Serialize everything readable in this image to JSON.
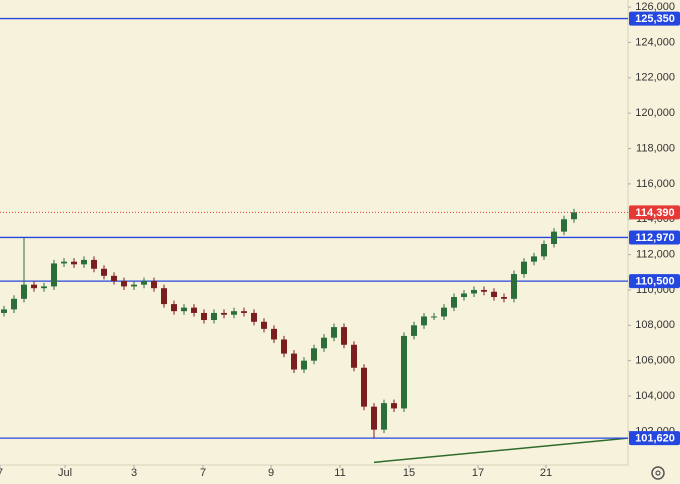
{
  "chart_data": {
    "type": "candlestick",
    "open": [
      108700,
      108900,
      109500,
      110300,
      110100,
      110200,
      111500,
      111600,
      111450,
      111700,
      111200,
      110800,
      110500,
      110200,
      110300,
      110500,
      110100,
      109200,
      108800,
      109000,
      108700,
      108300,
      108700,
      108600,
      108800,
      108700,
      108200,
      107800,
      107200,
      106400,
      105500,
      106000,
      106700,
      107300,
      107900,
      106900,
      105600,
      103400,
      102100,
      103600,
      103300,
      107400,
      108000,
      108500,
      108500,
      109000,
      109600,
      109800,
      110000,
      109900,
      109600,
      109500,
      110900,
      111600,
      111900,
      112600,
      113300,
      114000
    ],
    "high": [
      109100,
      109700,
      112970,
      110500,
      110400,
      111700,
      111800,
      111800,
      111900,
      111900,
      111400,
      111000,
      110700,
      110500,
      110700,
      110700,
      110300,
      109400,
      109200,
      109200,
      108900,
      108900,
      108900,
      109000,
      109000,
      108900,
      108400,
      108000,
      107400,
      106600,
      106200,
      106900,
      107500,
      108100,
      108100,
      107100,
      105800,
      103600,
      103800,
      103800,
      107600,
      108200,
      108700,
      108700,
      109200,
      109800,
      110000,
      110200,
      110200,
      110100,
      109800,
      111100,
      111800,
      112100,
      112800,
      113500,
      114200,
      114590
    ],
    "low": [
      108500,
      108700,
      109300,
      109900,
      109900,
      110000,
      111300,
      111250,
      111250,
      111000,
      110600,
      110300,
      110000,
      110000,
      110100,
      109900,
      109000,
      108600,
      108600,
      108500,
      108100,
      108100,
      108400,
      108400,
      108500,
      108000,
      107600,
      107000,
      106200,
      105300,
      105300,
      105800,
      106500,
      107100,
      106700,
      105400,
      103200,
      101620,
      101900,
      103100,
      103100,
      107200,
      107800,
      108300,
      108300,
      108800,
      109400,
      109600,
      109700,
      109400,
      109300,
      109300,
      110700,
      111400,
      111700,
      112400,
      113100,
      113800
    ],
    "close": [
      108900,
      109500,
      110300,
      110100,
      110200,
      111500,
      111600,
      111450,
      111700,
      111200,
      110800,
      110500,
      110200,
      110300,
      110500,
      110100,
      109200,
      108800,
      109000,
      108700,
      108300,
      108700,
      108600,
      108800,
      108700,
      108200,
      107800,
      107200,
      106400,
      105500,
      106000,
      106700,
      107300,
      107900,
      106900,
      105600,
      103400,
      102100,
      103600,
      103300,
      107400,
      108000,
      108500,
      108500,
      109000,
      109600,
      109800,
      110000,
      109900,
      109600,
      109500,
      110900,
      111600,
      111900,
      112600,
      113300,
      114000,
      114390
    ],
    "up_color": "#2b6e3a",
    "down_color": "#7a1f1f",
    "ylim": [
      100100,
      126400
    ],
    "yticks": [
      {
        "value": 102000,
        "label": "102,000"
      },
      {
        "value": 104000,
        "label": "104,000"
      },
      {
        "value": 106000,
        "label": "106,000"
      },
      {
        "value": 108000,
        "label": "108,000"
      },
      {
        "value": 110000,
        "label": "110,000"
      },
      {
        "value": 112000,
        "label": "112,000"
      },
      {
        "value": 114000,
        "label": "114,000"
      },
      {
        "value": 116000,
        "label": "116,000"
      },
      {
        "value": 118000,
        "label": "118,000"
      },
      {
        "value": 120000,
        "label": "120,000"
      },
      {
        "value": 122000,
        "label": "122,000"
      },
      {
        "value": 124000,
        "label": "124,000"
      },
      {
        "value": 126000,
        "label": "126,000"
      }
    ],
    "xticks": [
      {
        "value": -0.4,
        "label": "7"
      },
      {
        "value": 6.1,
        "label": "Jul"
      },
      {
        "value": 13,
        "label": "3"
      },
      {
        "value": 19.9,
        "label": "7"
      },
      {
        "value": 26.7,
        "label": "9"
      },
      {
        "value": 33.6,
        "label": "11"
      },
      {
        "value": 40.5,
        "label": "15"
      },
      {
        "value": 47.4,
        "label": "17"
      },
      {
        "value": 54.2,
        "label": "21"
      }
    ],
    "levels": [
      {
        "value": 125350,
        "label": "125,350"
      },
      {
        "value": 112970,
        "label": "112,970"
      },
      {
        "value": 110500,
        "label": "110,500"
      },
      {
        "value": 101620,
        "label": "101,620"
      }
    ],
    "level_color": "#2447e0",
    "last_price": {
      "value": 114390,
      "label": "114,390"
    },
    "last_price_color": "#e53935",
    "trendline": {
      "x": [
        37,
        62.4
      ],
      "values": [
        100250,
        101620
      ],
      "color": "#2e6b2a"
    },
    "grid": false
  }
}
